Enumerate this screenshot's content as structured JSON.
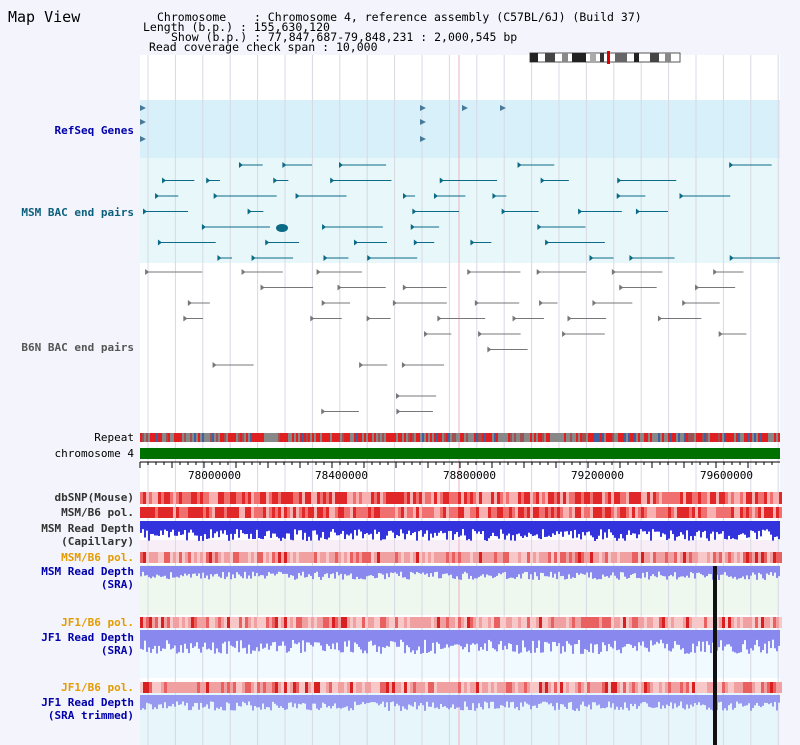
{
  "window_title": "Map View",
  "header": {
    "chromosome_key": "Chromosome",
    "chromosome_val": "Chromosome 4, reference assembly (C57BL/6J) (Build 37)",
    "length_key": "Length (b.p.)",
    "length_val": "155,630,120",
    "show_key": "Show (b.p.)",
    "show_val": "77,847,687-79,848,231 : 2,000,545 bp",
    "coverage_key": "Read coverage check span",
    "coverage_val": "10,000"
  },
  "tracks": {
    "refseq": "RefSeq Genes",
    "msm_bac": "MSM BAC end pairs",
    "b6n_bac": "B6N BAC end pairs",
    "repeat": "Repeat",
    "chromosome": "chromosome 4",
    "dbsnp": "dbSNP(Mouse)",
    "msm_b6_pol_1": "MSM/B6 pol.",
    "msm_read_depth_cap_1": "MSM Read Depth",
    "msm_read_depth_cap_2": "(Capillary)",
    "msm_b6_pol_2": "MSM/B6 pol.",
    "msm_read_depth_sra_1": "MSM Read Depth",
    "msm_read_depth_sra_2": "(SRA)",
    "jf1_b6_pol_1": "JF1/B6 pol.",
    "jf1_read_depth_1": "JF1 Read Depth",
    "jf1_read_depth_2": "(SRA)",
    "jf1_b6_pol_2": "JF1/B6 pol.",
    "jf1_read_depth_trim_1": "JF1 Read Depth",
    "jf1_read_depth_trim_2": "(SRA trimmed)"
  },
  "axis_ticks": [
    "78000000",
    "78400000",
    "78800000",
    "79200000",
    "79600000"
  ],
  "colors": {
    "refseq_bg": "#d8f0fa",
    "msm_bg": "#e8f8fa",
    "chromosome_bar": "#007000",
    "depth_blue": "#3333dd",
    "depth_light": "#8888ee",
    "pol_red": "#ee3333",
    "teal_feature": "#0b6a86",
    "grey_feature": "#777777"
  }
}
